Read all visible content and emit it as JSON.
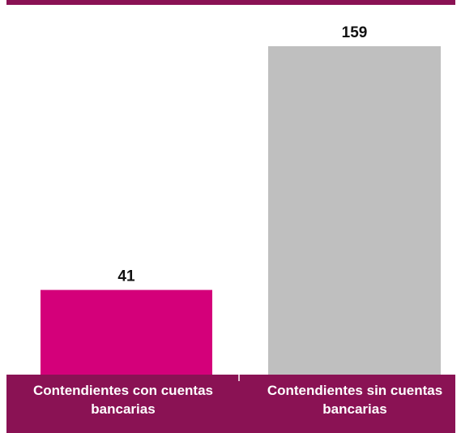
{
  "chart_data": {
    "type": "bar",
    "categories": [
      "Contendientes con cuentas bancarias",
      "Contendientes sin cuentas bancarias"
    ],
    "values": [
      41,
      159
    ],
    "colors": [
      "#d4007a",
      "#bfbfbf"
    ]
  }
}
